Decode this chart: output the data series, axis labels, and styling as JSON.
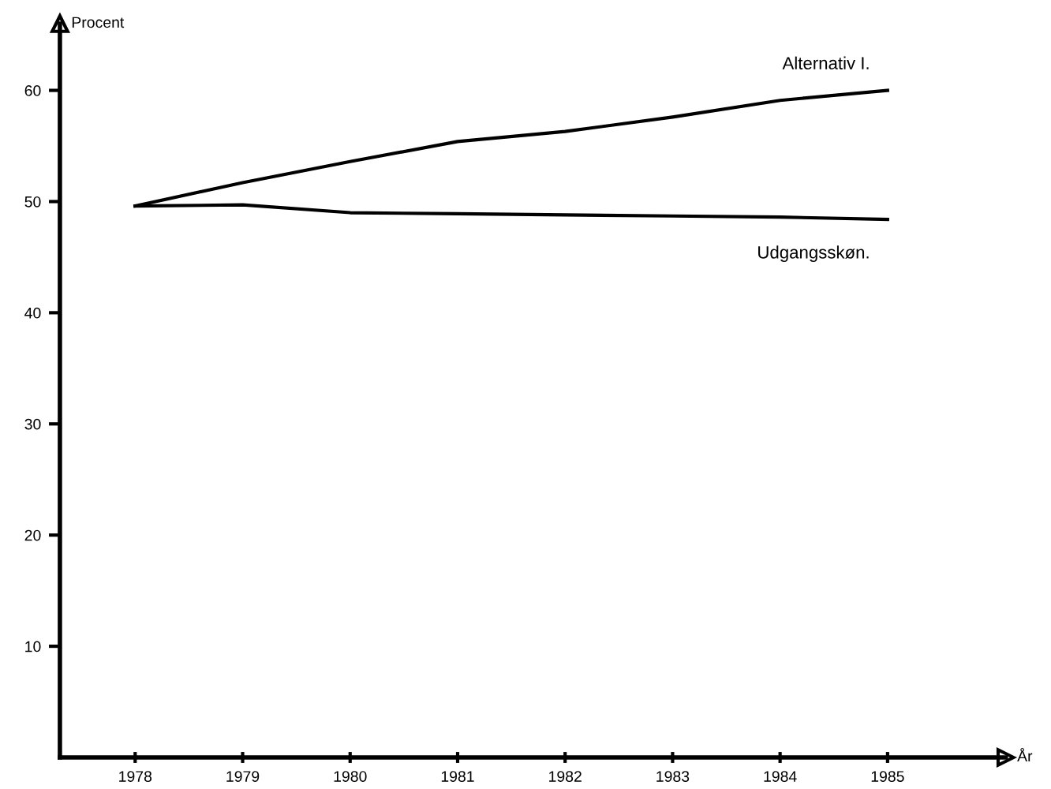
{
  "chart_data": {
    "type": "line",
    "xlabel": "År",
    "ylabel": "Procent",
    "x": [
      1978,
      1979,
      1980,
      1981,
      1982,
      1983,
      1984,
      1985
    ],
    "series": [
      {
        "name": "Alternativ I.",
        "color": "#000000",
        "values": [
          49.6,
          51.7,
          53.6,
          55.4,
          56.3,
          57.6,
          59.1,
          60.0
        ]
      },
      {
        "name": "Udgangsskøn.",
        "color": "#000000",
        "values": [
          49.6,
          49.7,
          49.0,
          48.9,
          48.8,
          48.7,
          48.6,
          48.4
        ]
      }
    ],
    "xlim": [
      1977.3,
      1986.1
    ],
    "ylim": [
      0,
      66
    ],
    "xticks": [
      1978,
      1979,
      1980,
      1981,
      1982,
      1983,
      1984,
      1985
    ],
    "yticks": [
      10,
      20,
      30,
      40,
      50,
      60
    ],
    "grid": false,
    "legend": false,
    "marker": "none",
    "line_style": "solid"
  }
}
